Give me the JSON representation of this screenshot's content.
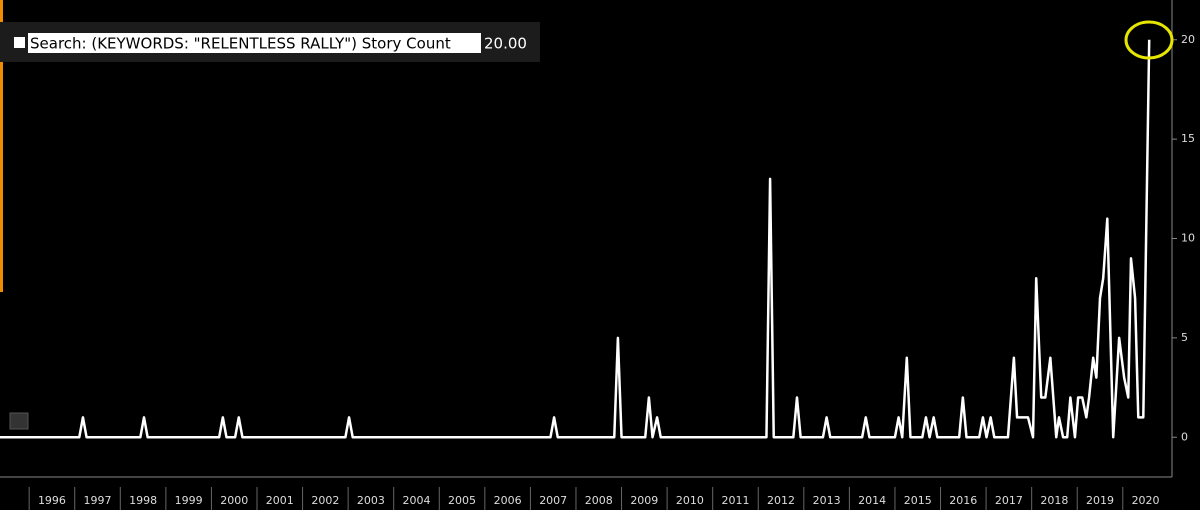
{
  "chart_data": {
    "type": "line",
    "series": [
      {
        "name": "Search: (KEYWORDS: \"RELENTLESS RALLY\") Story Count",
        "color": "#ffffff",
        "x": [
          1995.36,
          1997.1,
          1997.18,
          1997.26,
          1998.44,
          1998.52,
          1998.6,
          2000.17,
          2000.25,
          2000.33,
          2000.52,
          2000.6,
          2000.68,
          2002.94,
          2003.02,
          2003.1,
          2007.44,
          2007.52,
          2007.6,
          2008.84,
          2008.92,
          2009.0,
          2009.52,
          2009.6,
          2009.68,
          2009.78,
          2009.86,
          2012.18,
          2012.26,
          2012.34,
          2012.77,
          2012.85,
          2012.93,
          2013.42,
          2013.5,
          2013.58,
          2014.28,
          2014.36,
          2014.44,
          2015.0,
          2015.08,
          2015.16,
          2015.26,
          2015.34,
          2015.6,
          2015.68,
          2015.76,
          2015.85,
          2015.93,
          2016.41,
          2016.49,
          2016.57,
          2016.85,
          2016.93,
          2017.01,
          2017.1,
          2017.18,
          2017.48,
          2017.61,
          2017.68,
          2017.92,
          2018.03,
          2018.1,
          2018.21,
          2018.3,
          2018.41,
          2018.54,
          2018.6,
          2018.69,
          2018.78,
          2018.85,
          2018.95,
          2019.02,
          2019.11,
          2019.2,
          2019.26,
          2019.35,
          2019.42,
          2019.5,
          2019.57,
          2019.66,
          2019.79,
          2019.92,
          2020.03,
          2020.12,
          2020.18,
          2020.27,
          2020.34,
          2020.45,
          2020.58
        ],
        "values": [
          0,
          0,
          1,
          0,
          0,
          1,
          0,
          0,
          1,
          0,
          0,
          1,
          0,
          0,
          1,
          0,
          0,
          1,
          0,
          0,
          5,
          0,
          0,
          2,
          0,
          1,
          0,
          0,
          13,
          0,
          0,
          2,
          0,
          0,
          1,
          0,
          0,
          1,
          0,
          0,
          1,
          0,
          4,
          0,
          0,
          1,
          0,
          1,
          0,
          0,
          2,
          0,
          0,
          1,
          0,
          1,
          0,
          0,
          4,
          1,
          1,
          0,
          8,
          2,
          2,
          4,
          0,
          1,
          0,
          0,
          2,
          0,
          2,
          2,
          1,
          2,
          4,
          3,
          7,
          8,
          11,
          0,
          5,
          3,
          2,
          9,
          7,
          1,
          1,
          20
        ],
        "legend_value": "20.00"
      }
    ],
    "xlim": [
      1995.36,
      2021.08
    ],
    "xticks": [
      1996,
      1997,
      1998,
      1999,
      2000,
      2001,
      2002,
      2003,
      2004,
      2005,
      2006,
      2007,
      2008,
      2009,
      2010,
      2011,
      2012,
      2013,
      2014,
      2015,
      2016,
      2017,
      2018,
      2019,
      2020
    ],
    "ylim": [
      -2,
      22
    ],
    "yticks": [
      0,
      5,
      10,
      15,
      20
    ]
  }
}
